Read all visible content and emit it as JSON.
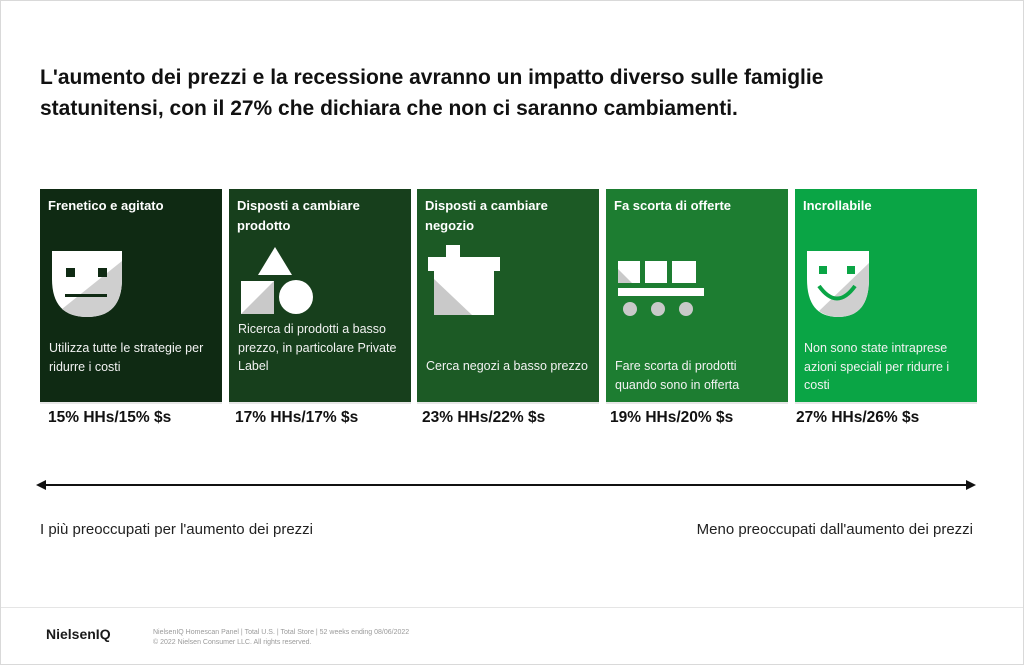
{
  "title": {
    "line1": "L'aumento dei prezzi e la recessione avranno un impatto diverso sulle famiglie",
    "line2": "statunitensi, con il 27% che dichiara che non ci saranno cambiamenti."
  },
  "colors": {
    "card1": "#0f2a13",
    "card2": "#173f1c",
    "card3": "#1c5a25",
    "card4": "#1d7d31",
    "card5": "#0aa545"
  },
  "cards": [
    {
      "title": "Frenetico e agitato",
      "icon": "neutral-face-icon",
      "text": "Utilizza tutte le strategie per ridurre i costi",
      "stat": "15% HHs/15% $s"
    },
    {
      "title": "Disposti a cambiare prodotto",
      "icon": "shapes-icon",
      "text": "Ricerca di prodotti a basso prezzo, in particolare Private Label",
      "stat": "17% HHs/17% $s"
    },
    {
      "title": "Disposti a cambiare negozio",
      "icon": "store-icon",
      "text": "Cerca negozi a basso prezzo",
      "stat": "23% HHs/22% $s"
    },
    {
      "title": "Fa scorta di offerte",
      "icon": "cart-stock-icon",
      "text": "Fare scorta di prodotti quando sono in offerta",
      "stat": "19% HHs/20% $s"
    },
    {
      "title": "Incrollabile",
      "icon": "smile-face-icon",
      "text": "Non sono state intraprese azioni speciali per ridurre i costi",
      "stat": "27% HHs/26% $s"
    }
  ],
  "axis": {
    "left_label": "I più preoccupati per l'aumento dei prezzi",
    "right_label": "Meno preoccupati dall'aumento dei prezzi"
  },
  "footer": {
    "logo": "NielsenIQ",
    "source": "NielsenIQ Homescan Panel | Total U.S. | Total Store | 52 weeks ending 08/06/2022",
    "copyright": "© 2022 Nielsen Consumer LLC. All rights reserved."
  }
}
